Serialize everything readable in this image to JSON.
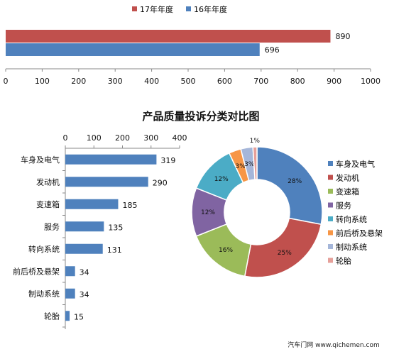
{
  "chart_data": [
    {
      "type": "bar",
      "orientation": "horizontal",
      "title": "",
      "series": [
        {
          "name": "17年年度",
          "values": [
            890
          ],
          "color": "#c0504d"
        },
        {
          "name": "16年年度",
          "values": [
            696
          ],
          "color": "#4f81bd"
        }
      ],
      "xlim": [
        0,
        1000
      ],
      "xticks": [
        0,
        100,
        200,
        300,
        400,
        500,
        600,
        700,
        800,
        900,
        1000
      ],
      "grid": false,
      "legend": "top"
    },
    {
      "type": "bar",
      "orientation": "horizontal",
      "title": "产品质量投诉分类对比图",
      "categories": [
        "车身及电气",
        "发动机",
        "变速箱",
        "服务",
        "转向系统",
        "前后桥及悬架",
        "制动系统",
        "轮胎"
      ],
      "values": [
        319,
        290,
        185,
        135,
        131,
        34,
        34,
        15
      ],
      "xlim": [
        0,
        400
      ],
      "xticks": [
        0,
        100,
        200,
        300,
        400
      ],
      "color": "#4f81bd"
    },
    {
      "type": "pie",
      "categories": [
        "车身及电气",
        "发动机",
        "变速箱",
        "服务",
        "转向系统",
        "前后桥及悬架",
        "制动系统",
        "轮胎"
      ],
      "values": [
        28,
        25,
        16,
        12,
        12,
        3,
        3,
        1
      ],
      "labels": [
        "28%",
        "25%",
        "16%",
        "12%",
        "12%",
        "3%",
        "3%",
        "1%"
      ],
      "colors": [
        "#4f81bd",
        "#c0504d",
        "#9bbb59",
        "#8064a2",
        "#4bacc6",
        "#f79646",
        "#a5b6d9",
        "#e6a09a"
      ],
      "legend": "right"
    }
  ],
  "watermark": "汽车门网 www.qichemen.com"
}
